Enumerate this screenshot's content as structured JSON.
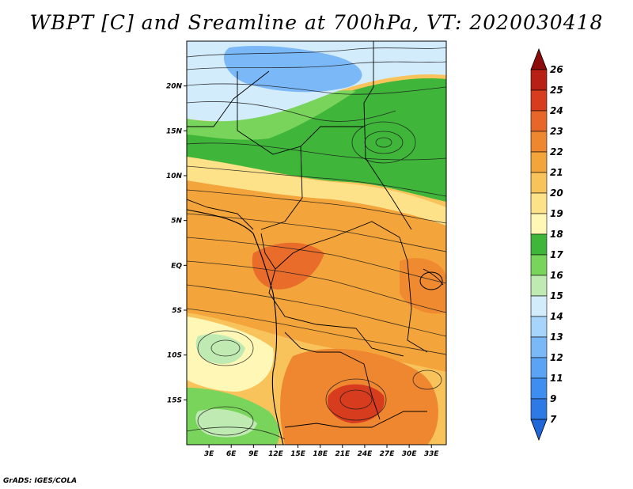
{
  "title": "WBPT [C] and Sreamline at 700hPa, VT: 2020030418",
  "credit": "GrADS: IGES/COLA",
  "map": {
    "lon_range": [
      0,
      35
    ],
    "lat_range": [
      -20,
      25
    ],
    "lon_ticks": [
      "3E",
      "6E",
      "9E",
      "12E",
      "15E",
      "18E",
      "21E",
      "24E",
      "27E",
      "30E",
      "33E"
    ],
    "lat_ticks": [
      "20N",
      "15N",
      "10N",
      "5N",
      "EQ",
      "5S",
      "10S",
      "15S"
    ]
  },
  "colorbar": {
    "levels": [
      "7",
      "9",
      "11",
      "12",
      "13",
      "14",
      "15",
      "16",
      "17",
      "18",
      "19",
      "20",
      "21",
      "22",
      "23",
      "24",
      "25",
      "26"
    ],
    "colors": [
      "#1f66d9",
      "#2d7ae6",
      "#3d8ef0",
      "#5aa3f5",
      "#7ab8f8",
      "#a7d4fa",
      "#d3ecfc",
      "#bfeab2",
      "#78d45a",
      "#3fb53a",
      "#fff7b5",
      "#fde28a",
      "#f9c35c",
      "#f3a43a",
      "#ef8730",
      "#e8662a",
      "#d83c1e",
      "#b82016",
      "#8c0c0c"
    ]
  },
  "fields": {
    "regions": [
      {
        "name": "north-blue-region",
        "color": "#7ab8f8"
      },
      {
        "name": "north-lightblue-region",
        "color": "#d3ecfc"
      },
      {
        "name": "sahel-green-region",
        "color": "#3fb53a"
      },
      {
        "name": "central-orange-region",
        "color": "#f3a43a"
      },
      {
        "name": "southern-orange-region",
        "color": "#ef8730"
      },
      {
        "name": "southwest-green-region",
        "color": "#78d45a"
      }
    ]
  }
}
